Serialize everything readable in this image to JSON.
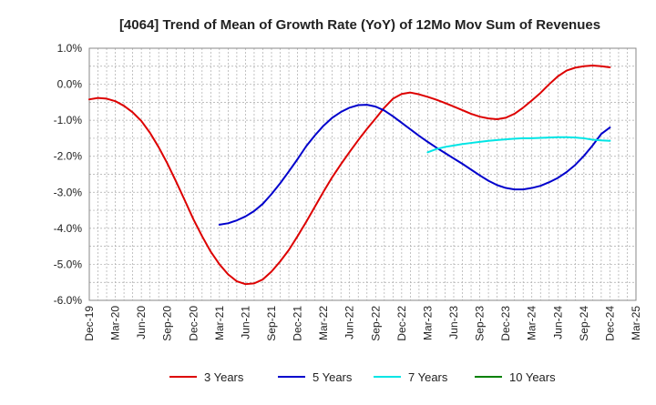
{
  "chart_data": {
    "type": "line",
    "title": "[4064]  Trend of Mean of Growth Rate (YoY) of 12Mo Mov Sum of Revenues",
    "xlabel": "",
    "ylabel": "",
    "y_ticks": [
      "1.0%",
      "0.0%",
      "-1.0%",
      "-2.0%",
      "-3.0%",
      "-4.0%",
      "-5.0%",
      "-6.0%"
    ],
    "y_tick_values": [
      1,
      0,
      -1,
      -2,
      -3,
      -4,
      -5,
      -6
    ],
    "ylim": [
      -6,
      1
    ],
    "x_ticks": [
      "Dec-19",
      "Mar-20",
      "Jun-20",
      "Sep-20",
      "Dec-20",
      "Mar-21",
      "Jun-21",
      "Sep-21",
      "Dec-21",
      "Mar-22",
      "Jun-22",
      "Sep-22",
      "Dec-22",
      "Mar-23",
      "Jun-23",
      "Sep-23",
      "Dec-23",
      "Mar-24",
      "Jun-24",
      "Sep-24",
      "Dec-24",
      "Mar-25"
    ],
    "x_months_total": 63,
    "grid": true,
    "legend_position": "bottom",
    "series": [
      {
        "name": "3 Years",
        "color": "#dd0000",
        "start_month": 0,
        "values": [
          -0.42,
          -0.38,
          -0.4,
          -0.47,
          -0.6,
          -0.78,
          -1.02,
          -1.35,
          -1.75,
          -2.2,
          -2.7,
          -3.22,
          -3.75,
          -4.22,
          -4.65,
          -5.0,
          -5.28,
          -5.47,
          -5.55,
          -5.53,
          -5.42,
          -5.2,
          -4.92,
          -4.6,
          -4.22,
          -3.82,
          -3.4,
          -2.98,
          -2.58,
          -2.22,
          -1.88,
          -1.55,
          -1.24,
          -0.95,
          -0.65,
          -0.4,
          -0.27,
          -0.23,
          -0.28,
          -0.35,
          -0.43,
          -0.52,
          -0.62,
          -0.72,
          -0.82,
          -0.9,
          -0.95,
          -0.97,
          -0.93,
          -0.82,
          -0.65,
          -0.45,
          -0.24,
          0.0,
          0.22,
          0.38,
          0.46,
          0.5,
          0.52,
          0.5,
          0.47
        ]
      },
      {
        "name": "5 Years",
        "color": "#0000cc",
        "start_month": 15,
        "values": [
          -3.9,
          -3.86,
          -3.78,
          -3.67,
          -3.52,
          -3.32,
          -3.05,
          -2.75,
          -2.42,
          -2.08,
          -1.72,
          -1.42,
          -1.15,
          -0.93,
          -0.77,
          -0.65,
          -0.58,
          -0.57,
          -0.62,
          -0.73,
          -0.89,
          -1.07,
          -1.25,
          -1.43,
          -1.6,
          -1.76,
          -1.91,
          -2.06,
          -2.21,
          -2.37,
          -2.53,
          -2.68,
          -2.8,
          -2.88,
          -2.92,
          -2.92,
          -2.88,
          -2.82,
          -2.72,
          -2.6,
          -2.44,
          -2.24,
          -1.99,
          -1.7,
          -1.38,
          -1.2
        ]
      },
      {
        "name": "7 Years",
        "color": "#00e5e5",
        "start_month": 39,
        "values": [
          -1.89,
          -1.8,
          -1.74,
          -1.7,
          -1.66,
          -1.63,
          -1.6,
          -1.57,
          -1.55,
          -1.53,
          -1.51,
          -1.5,
          -1.5,
          -1.49,
          -1.48,
          -1.47,
          -1.47,
          -1.48,
          -1.5,
          -1.54,
          -1.56,
          -1.57
        ]
      },
      {
        "name": "10 Years",
        "color": "#008000",
        "start_month": 0,
        "values": []
      }
    ]
  }
}
